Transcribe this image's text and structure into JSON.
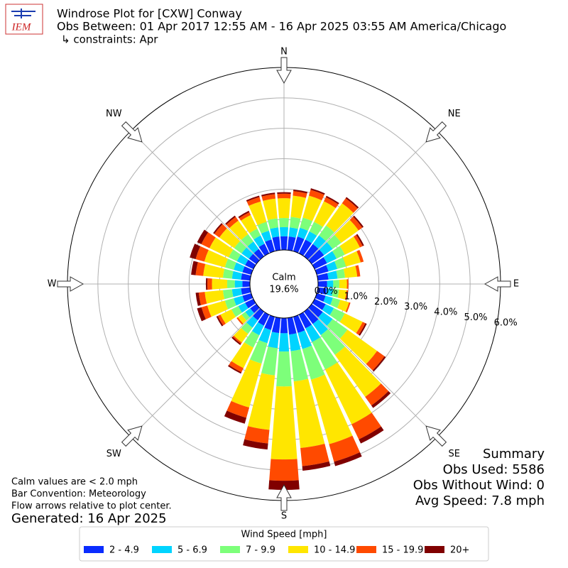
{
  "chart_data": {
    "type": "windrose",
    "logo_text": "IEM",
    "title": "Windrose Plot for [CXW] Conway",
    "subtitle": "Obs Between: 01 Apr 2017 12:55 AM - 16 Apr 2025 03:55 AM America/Chicago",
    "constraints": "↳ constraints: Apr",
    "direction_labels": [
      "N",
      "NE",
      "E",
      "SE",
      "S",
      "SW",
      "W",
      "NW"
    ],
    "x": [
      0,
      10,
      20,
      30,
      40,
      50,
      60,
      70,
      80,
      90,
      100,
      110,
      120,
      130,
      140,
      150,
      160,
      170,
      180,
      190,
      200,
      210,
      220,
      230,
      240,
      250,
      260,
      270,
      280,
      290,
      300,
      310,
      320,
      330,
      340,
      350
    ],
    "ylim": [
      0,
      6
    ],
    "yticks": [
      {
        "value": 0,
        "label": "0.0%"
      },
      {
        "value": 1,
        "label": "1.0%"
      },
      {
        "value": 2,
        "label": "2.0%"
      },
      {
        "value": 3,
        "label": "3.0%"
      },
      {
        "value": 4,
        "label": "4.0%"
      },
      {
        "value": 5,
        "label": "5.0%"
      },
      {
        "value": 6,
        "label": "6.0%"
      }
    ],
    "grid": true,
    "calm": {
      "label": "Calm",
      "value": 19.6,
      "value_label": "19.6%"
    },
    "legend_title": "Wind Speed [mph]",
    "series": [
      {
        "name": "2 - 4.9",
        "color": "#0a2cff",
        "values": [
          0.45,
          0.45,
          0.5,
          0.5,
          0.5,
          0.5,
          0.45,
          0.4,
          0.35,
          0.3,
          0.3,
          0.3,
          0.4,
          0.45,
          0.5,
          0.5,
          0.55,
          0.55,
          0.5,
          0.5,
          0.45,
          0.4,
          0.35,
          0.25,
          0.3,
          0.3,
          0.3,
          0.25,
          0.3,
          0.3,
          0.3,
          0.3,
          0.3,
          0.35,
          0.4,
          0.45
        ]
      },
      {
        "name": "5 - 6.9",
        "color": "#00d4ff",
        "values": [
          0.3,
          0.3,
          0.3,
          0.3,
          0.35,
          0.35,
          0.35,
          0.3,
          0.3,
          0.2,
          0.2,
          0.25,
          0.3,
          0.4,
          0.45,
          0.5,
          0.55,
          0.55,
          0.6,
          0.5,
          0.45,
          0.35,
          0.3,
          0.2,
          0.25,
          0.3,
          0.3,
          0.25,
          0.3,
          0.3,
          0.3,
          0.3,
          0.3,
          0.3,
          0.3,
          0.3
        ]
      },
      {
        "name": "7 - 9.9",
        "color": "#7dff7a",
        "values": [
          0.3,
          0.35,
          0.35,
          0.35,
          0.4,
          0.35,
          0.3,
          0.3,
          0.25,
          0.2,
          0.2,
          0.25,
          0.4,
          0.6,
          0.8,
          1.0,
          1.05,
          1.0,
          1.15,
          0.9,
          0.7,
          0.45,
          0.25,
          0.15,
          0.25,
          0.3,
          0.3,
          0.25,
          0.3,
          0.3,
          0.3,
          0.3,
          0.3,
          0.25,
          0.3,
          0.3
        ]
      },
      {
        "name": "10 - 14.9",
        "color": "#ffe600",
        "values": [
          0.65,
          0.7,
          0.75,
          0.75,
          0.9,
          0.7,
          0.55,
          0.5,
          0.4,
          0.25,
          0.25,
          0.3,
          0.65,
          1.2,
          1.7,
          2.0,
          2.2,
          2.2,
          2.4,
          1.8,
          1.5,
          0.75,
          0.35,
          0.15,
          0.4,
          0.6,
          0.6,
          0.5,
          0.65,
          0.7,
          0.7,
          0.6,
          0.55,
          0.5,
          0.7,
          0.65
        ]
      },
      {
        "name": "15 - 19.9",
        "color": "#ff4a00",
        "values": [
          0.15,
          0.15,
          0.2,
          0.15,
          0.2,
          0.15,
          0.1,
          0.1,
          0.1,
          0.05,
          0.05,
          0.05,
          0.1,
          0.3,
          0.35,
          0.55,
          0.6,
          0.6,
          0.7,
          0.45,
          0.35,
          0.15,
          0.05,
          0.05,
          0.1,
          0.2,
          0.2,
          0.15,
          0.25,
          0.3,
          0.3,
          0.2,
          0.15,
          0.1,
          0.15,
          0.15
        ]
      },
      {
        "name": "20+",
        "color": "#800000",
        "values": [
          0.05,
          0.05,
          0.05,
          0.05,
          0.05,
          0.05,
          0.05,
          0,
          0,
          0,
          0,
          0,
          0.05,
          0.05,
          0.1,
          0.15,
          0.15,
          0.15,
          0.3,
          0.2,
          0.2,
          0.05,
          0.05,
          0,
          0.05,
          0.15,
          0.1,
          0.05,
          0.15,
          0.2,
          0.15,
          0.05,
          0.05,
          0.05,
          0.05,
          0.05
        ]
      }
    ],
    "summary": [
      "Summary",
      "Obs Used: 5586",
      "Obs Without Wind: 0",
      "Avg Speed: 7.8 mph"
    ],
    "notes": [
      "Calm values are < 2.0 mph",
      "Bar Convention: Meteorology",
      "Flow arrows relative to plot center."
    ],
    "generated": "Generated: 16 Apr 2025"
  }
}
